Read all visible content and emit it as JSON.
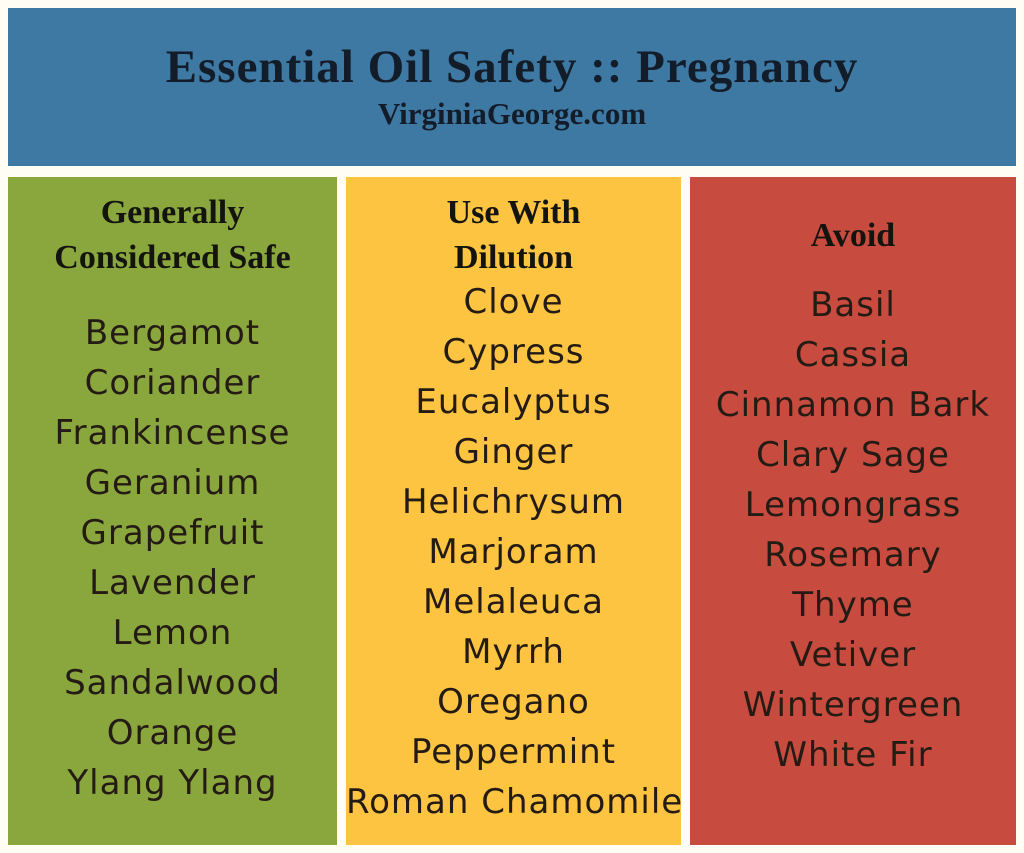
{
  "header": {
    "title": "Essential Oil Safety :: Pregnancy",
    "subtitle": "VirginiaGeorge.com",
    "background": "#3e79a4",
    "text_color": "#131c29"
  },
  "columns": [
    {
      "heading": "Generally Considered Safe",
      "background": "#8aa73e",
      "items": [
        "Bergamot",
        "Coriander",
        "Frankincense",
        "Geranium",
        "Grapefruit",
        "Lavender",
        "Lemon",
        "Sandalwood",
        "Orange",
        "Ylang Ylang"
      ]
    },
    {
      "heading": "Use With Dilution",
      "background": "#fcc440",
      "items": [
        "Clove",
        "Cypress",
        "Eucalyptus",
        "Ginger",
        "Helichrysum",
        "Marjoram",
        "Melaleuca",
        "Myrrh",
        "Oregano",
        "Peppermint",
        "Roman Chamomile"
      ]
    },
    {
      "heading": "Avoid",
      "background": "#c74b3f",
      "items": [
        "Basil",
        "Cassia",
        "Cinnamon Bark",
        "Clary Sage",
        "Lemongrass",
        "Rosemary",
        "Thyme",
        "Vetiver",
        "Wintergreen",
        "White Fir"
      ]
    }
  ],
  "colors": {
    "page_background": "#fffdf4",
    "list_text": "#241b14",
    "heading_text": "#14140f"
  }
}
